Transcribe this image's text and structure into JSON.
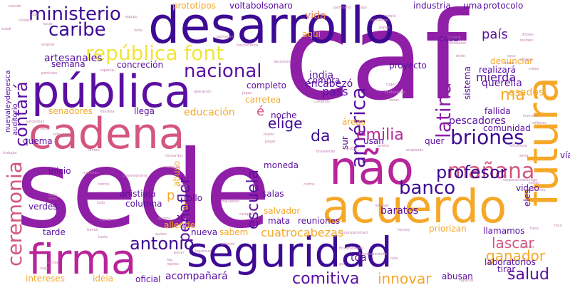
{
  "palette": {
    "purple": "#8f1fa6",
    "indigo": "#3d0a94",
    "violet": "#5a0fa1",
    "pink": "#d4567e",
    "rose": "#de6b6b",
    "amber": "#f5a828",
    "yellow": "#f0e53a",
    "orange": "#f09645",
    "magenta": "#b8249a",
    "plum": "#7a1190",
    "coral": "#e57d55"
  },
  "words": [
    {
      "text": "sede",
      "color": "purple"
    },
    {
      "text": "caf",
      "color": "purple"
    },
    {
      "text": "desarrollo",
      "color": "indigo"
    },
    {
      "text": "pública",
      "color": "violet"
    },
    {
      "text": "cadena",
      "color": "pink"
    },
    {
      "text": "acuerdo",
      "color": "amber"
    },
    {
      "text": "seguridad",
      "color": "indigo"
    },
    {
      "text": "futura",
      "color": "amber"
    },
    {
      "text": "não",
      "color": "magenta"
    },
    {
      "text": "firma",
      "color": "magenta"
    },
    {
      "text": "república font",
      "color": "yellow"
    },
    {
      "text": "ministerio",
      "color": "indigo"
    },
    {
      "text": "caribe",
      "color": "indigo"
    },
    {
      "text": "nacional",
      "color": "violet"
    },
    {
      "text": "américa",
      "color": "violet"
    },
    {
      "text": "latina",
      "color": "purple"
    },
    {
      "text": "ma",
      "color": "amber"
    },
    {
      "text": "briones",
      "color": "indigo"
    },
    {
      "text": "mañana",
      "color": "pink"
    },
    {
      "text": "banco",
      "color": "indigo"
    },
    {
      "text": "profesor",
      "color": "indigo"
    },
    {
      "text": "ceremonia",
      "color": "pink"
    },
    {
      "text": "contará",
      "color": "violet"
    },
    {
      "text": "antonio",
      "color": "indigo"
    },
    {
      "text": "peñaflor",
      "color": "violet"
    },
    {
      "text": "escuela",
      "color": "violet"
    },
    {
      "text": "emilia",
      "color": "magenta"
    },
    {
      "text": "elige",
      "color": "indigo"
    },
    {
      "text": "da",
      "color": "indigo"
    },
    {
      "text": "é",
      "color": "pink"
    },
    {
      "text": "cuatrocabezas",
      "color": "amber"
    },
    {
      "text": "comitiva",
      "color": "violet"
    },
    {
      "text": "innovar",
      "color": "amber"
    },
    {
      "text": "salud",
      "color": "violet"
    },
    {
      "text": "lascar",
      "color": "pink"
    },
    {
      "text": "ganador",
      "color": "amber"
    },
    {
      "text": "país",
      "color": "violet"
    },
    {
      "text": "artesanales",
      "color": "violet"
    },
    {
      "text": "prototipos",
      "color": "amber"
    },
    {
      "text": "voltabolsonaro",
      "color": "violet"
    },
    {
      "text": "vida",
      "color": "coral"
    },
    {
      "text": "industria",
      "color": "violet"
    },
    {
      "text": "uma",
      "color": "violet"
    },
    {
      "text": "protocolo",
      "color": "violet"
    },
    {
      "text": "casa",
      "color": "violet"
    },
    {
      "text": "compra",
      "color": "violet"
    },
    {
      "text": "proyecto",
      "color": "violet"
    },
    {
      "text": "india",
      "color": "violet"
    },
    {
      "text": "encabezó",
      "color": "violet"
    },
    {
      "text": "completo",
      "color": "violet"
    },
    {
      "text": "pass",
      "color": "violet"
    },
    {
      "text": "carretea",
      "color": "amber"
    },
    {
      "text": "semana",
      "color": "violet"
    },
    {
      "text": "concreción",
      "color": "violet"
    },
    {
      "text": "educación",
      "color": "amber"
    },
    {
      "text": "senadores",
      "color": "amber"
    },
    {
      "text": "llega",
      "color": "violet"
    },
    {
      "text": "noche",
      "color": "violet"
    },
    {
      "text": "pescadores",
      "color": "violet"
    },
    {
      "text": "comunidad",
      "color": "violet"
    },
    {
      "text": "fallida",
      "color": "violet"
    },
    {
      "text": "mierda",
      "color": "violet"
    },
    {
      "text": "querella",
      "color": "violet"
    },
    {
      "text": "asados",
      "color": "amber"
    },
    {
      "text": "sistema",
      "color": "violet"
    },
    {
      "text": "realizará",
      "color": "violet"
    },
    {
      "text": "denunciar",
      "color": "amber"
    },
    {
      "text": "quer",
      "color": "violet"
    },
    {
      "text": "usan",
      "color": "violet"
    },
    {
      "text": "moneda",
      "color": "violet"
    },
    {
      "text": "inicio",
      "color": "violet"
    },
    {
      "text": "anistiajá",
      "color": "violet"
    },
    {
      "text": "salas",
      "color": "violet"
    },
    {
      "text": "baratos",
      "color": "violet"
    },
    {
      "text": "video",
      "color": "violet"
    },
    {
      "text": "salvador",
      "color": "amber"
    },
    {
      "text": "mata",
      "color": "violet"
    },
    {
      "text": "rollo",
      "color": "violet"
    },
    {
      "text": "reuniones",
      "color": "violet"
    },
    {
      "text": "columna",
      "color": "violet"
    },
    {
      "text": "verdes",
      "color": "violet"
    },
    {
      "text": "tarde",
      "color": "violet"
    },
    {
      "text": "allende",
      "color": "amber"
    },
    {
      "text": "nueva",
      "color": "violet"
    },
    {
      "text": "sabem",
      "color": "amber"
    },
    {
      "text": "priorizan",
      "color": "amber"
    },
    {
      "text": "llamamos",
      "color": "violet"
    },
    {
      "text": "laboratorios",
      "color": "violet"
    },
    {
      "text": "toa",
      "color": "violet"
    },
    {
      "text": "tirar",
      "color": "violet"
    },
    {
      "text": "abusan",
      "color": "violet"
    },
    {
      "text": "acompañará",
      "color": "violet"
    },
    {
      "text": "oficial",
      "color": "violet"
    },
    {
      "text": "ideia",
      "color": "amber"
    },
    {
      "text": "intereses",
      "color": "amber"
    },
    {
      "text": "quema",
      "color": "violet"
    },
    {
      "text": "nuevaleydepesca",
      "color": "violet"
    },
    {
      "text": "auditorio",
      "color": "violet"
    },
    {
      "text": "aquí",
      "color": "amber"
    },
    {
      "text": "abuso",
      "color": "amber"
    },
    {
      "text": "eles",
      "color": "violet"
    },
    {
      "text": "vía",
      "color": "violet"
    },
    {
      "text": "sur",
      "color": "violet"
    },
    {
      "text": "áreas",
      "color": "amber"
    },
    {
      "text": "à",
      "color": "amber"
    },
    {
      "text": "p",
      "color": "amber"
    }
  ]
}
